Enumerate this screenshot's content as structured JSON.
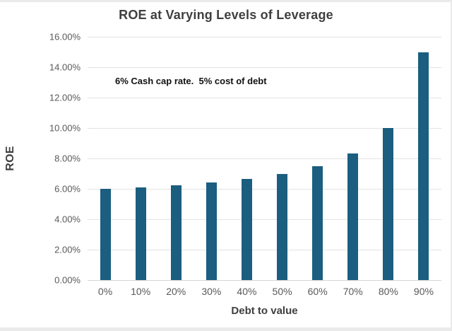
{
  "window": {
    "edge_color": "#eaeaea"
  },
  "chart_data": {
    "type": "bar",
    "title": "ROE at Varying Levels of Leverage",
    "annotation": "6% Cash cap rate.  5% cost of debt",
    "xlabel": "Debt to value",
    "ylabel": "ROE",
    "categories": [
      "0%",
      "10%",
      "20%",
      "30%",
      "40%",
      "50%",
      "60%",
      "70%",
      "80%",
      "90%"
    ],
    "values": [
      6.0,
      6.11,
      6.25,
      6.43,
      6.67,
      7.0,
      7.5,
      8.33,
      10.0,
      15.0
    ],
    "ylim": [
      0,
      16
    ],
    "ytick_step": 2,
    "ytick_labels": [
      "0.00%",
      "2.00%",
      "4.00%",
      "6.00%",
      "8.00%",
      "10.00%",
      "12.00%",
      "14.00%",
      "16.00%"
    ],
    "grid": true,
    "legend": "none",
    "colors": {
      "bar": "#1b5e7f",
      "gridline": "#e3e3e3",
      "axis_line": "#d5d5d5",
      "tick_label": "#595959",
      "title_text": "#3f3f3f",
      "annotation_text": "#111111"
    }
  }
}
